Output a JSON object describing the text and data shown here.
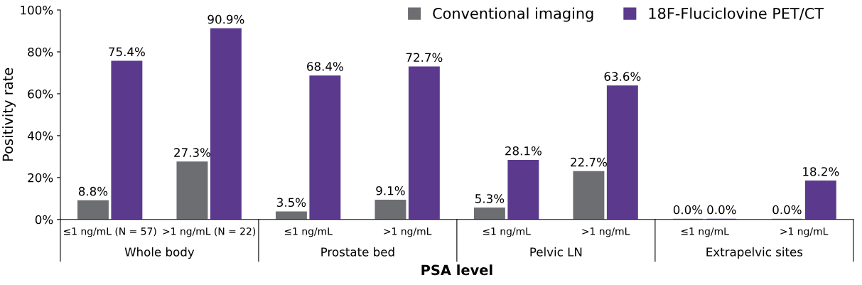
{
  "chart_data": {
    "type": "bar",
    "categories": [
      "≤1 ng/mL (N = 57)",
      ">1 ng/mL (N = 22)",
      "≤1 ng/mL",
      ">1 ng/mL",
      "≤1 ng/mL",
      ">1 ng/mL",
      "≤1 ng/mL",
      ">1 ng/mL"
    ],
    "series": [
      {
        "name": "Conventional imaging",
        "color": "#6d6e71",
        "values": [
          8.8,
          27.3,
          3.5,
          9.1,
          5.3,
          22.7,
          0.0,
          0.0
        ],
        "value_labels": [
          "8.8%",
          "27.3%",
          "3.5%",
          "9.1%",
          "5.3%",
          "22.7%",
          "0.0%",
          "0.0%"
        ]
      },
      {
        "name": "18F-Fluciclovine PET/CT",
        "color": "#5b3a8e",
        "values": [
          75.4,
          90.9,
          68.4,
          72.7,
          28.1,
          63.6,
          0.0,
          18.2
        ],
        "value_labels": [
          "75.4%",
          "90.9%",
          "68.4%",
          "72.7%",
          "28.1%",
          "63.6%",
          "0.0%",
          "18.2%"
        ]
      }
    ],
    "xlabel": "PSA level",
    "ylabel": "Positivity rate",
    "ylim": [
      0,
      100
    ],
    "yticks": [
      {
        "value": 0,
        "label": "0%"
      },
      {
        "value": 20,
        "label": "20%"
      },
      {
        "value": 40,
        "label": "40%"
      },
      {
        "value": 60,
        "label": "60%"
      },
      {
        "value": 80,
        "label": "80%"
      },
      {
        "value": 100,
        "label": "100%"
      }
    ],
    "annotations": [
      "Whole body",
      "Prostate bed",
      "Pelvic LN",
      "Extrapelvic sites"
    ],
    "grid": false,
    "legend": "top right"
  }
}
